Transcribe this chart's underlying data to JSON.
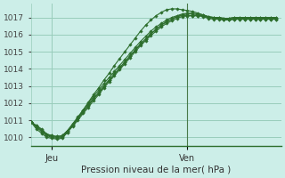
{
  "xlabel": "Pression niveau de la mer( hPa )",
  "bg_color": "#cceee8",
  "plot_bg_color": "#cceee8",
  "grid_color": "#99ccbb",
  "line_color": "#2d6e2d",
  "marker_color": "#2d6e2d",
  "ylim": [
    1009.5,
    1017.8
  ],
  "xlim": [
    0,
    48
  ],
  "yticks": [
    1010,
    1011,
    1012,
    1013,
    1014,
    1015,
    1016,
    1017
  ],
  "xtick_pos": [
    4,
    30
  ],
  "xtick_labels": [
    "Jeu",
    "Ven"
  ],
  "x_ven_line": 30,
  "series": [
    [
      1010.9,
      1010.7,
      1010.5,
      1010.2,
      1010.1,
      1010.05,
      1010.1,
      1010.4,
      1010.75,
      1011.1,
      1011.5,
      1011.9,
      1012.3,
      1012.6,
      1013.0,
      1013.35,
      1013.7,
      1014.05,
      1014.4,
      1014.75,
      1015.1,
      1015.45,
      1015.75,
      1016.05,
      1016.3,
      1016.55,
      1016.75,
      1016.9,
      1017.05,
      1017.1,
      1017.1,
      1017.1,
      1017.1,
      1017.1,
      1017.0,
      1017.0,
      1017.0,
      1016.95,
      1016.95,
      1017.0,
      1017.0,
      1017.0,
      1017.0,
      1017.0,
      1017.0,
      1017.0,
      1017.0,
      1017.0
    ],
    [
      1010.9,
      1010.6,
      1010.35,
      1010.1,
      1010.0,
      1009.95,
      1010.0,
      1010.3,
      1010.65,
      1011.0,
      1011.4,
      1011.75,
      1012.15,
      1012.5,
      1012.9,
      1013.25,
      1013.6,
      1013.95,
      1014.3,
      1014.65,
      1015.0,
      1015.35,
      1015.65,
      1015.95,
      1016.2,
      1016.45,
      1016.65,
      1016.8,
      1016.95,
      1017.05,
      1017.1,
      1017.1,
      1017.1,
      1017.05,
      1016.95,
      1016.9,
      1016.9,
      1016.85,
      1016.85,
      1016.9,
      1016.9,
      1016.9,
      1016.9,
      1016.9,
      1016.9,
      1016.9,
      1016.9,
      1016.9
    ],
    [
      1010.9,
      1010.65,
      1010.4,
      1010.15,
      1010.05,
      1010.0,
      1010.05,
      1010.35,
      1010.7,
      1011.1,
      1011.5,
      1011.85,
      1012.25,
      1012.6,
      1013.0,
      1013.35,
      1013.7,
      1014.05,
      1014.4,
      1014.75,
      1015.1,
      1015.45,
      1015.75,
      1016.05,
      1016.3,
      1016.55,
      1016.75,
      1016.9,
      1017.05,
      1017.15,
      1017.2,
      1017.2,
      1017.15,
      1017.1,
      1017.0,
      1016.95,
      1016.95,
      1016.9,
      1016.9,
      1016.95,
      1016.95,
      1016.95,
      1016.95,
      1016.95,
      1016.95,
      1016.95,
      1016.95,
      1016.95
    ],
    [
      1010.9,
      1010.7,
      1010.45,
      1010.2,
      1010.1,
      1010.05,
      1010.1,
      1010.4,
      1010.8,
      1011.2,
      1011.6,
      1012.0,
      1012.4,
      1012.75,
      1013.15,
      1013.5,
      1013.85,
      1014.2,
      1014.55,
      1014.9,
      1015.25,
      1015.6,
      1015.9,
      1016.2,
      1016.45,
      1016.65,
      1016.85,
      1017.0,
      1017.1,
      1017.2,
      1017.25,
      1017.25,
      1017.2,
      1017.15,
      1017.05,
      1017.0,
      1017.0,
      1016.95,
      1016.95,
      1017.0,
      1017.0,
      1017.0,
      1017.0,
      1017.0,
      1017.0,
      1017.0,
      1017.0,
      1017.0
    ],
    [
      1010.9,
      1010.5,
      1010.25,
      1010.0,
      1009.95,
      1009.9,
      1009.95,
      1010.3,
      1010.7,
      1011.15,
      1011.6,
      1012.05,
      1012.5,
      1012.9,
      1013.35,
      1013.75,
      1014.2,
      1014.6,
      1015.0,
      1015.4,
      1015.8,
      1016.2,
      1016.55,
      1016.85,
      1017.1,
      1017.3,
      1017.45,
      1017.5,
      1017.5,
      1017.45,
      1017.4,
      1017.35,
      1017.25,
      1017.15,
      1017.05,
      1017.0,
      1016.95,
      1016.9,
      1016.85,
      1016.9,
      1016.9,
      1016.9,
      1016.9,
      1016.9,
      1016.9,
      1016.9,
      1016.9,
      1016.9
    ]
  ]
}
